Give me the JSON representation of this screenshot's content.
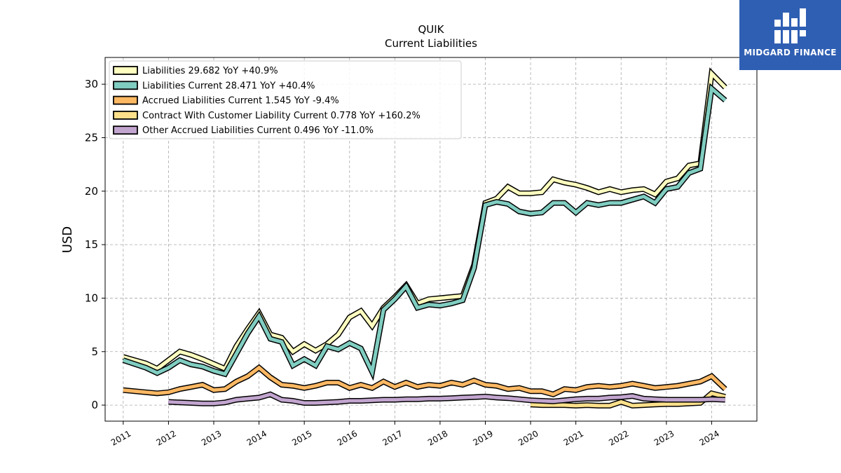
{
  "brand": {
    "name": "MIDGARD FINANCE",
    "color": "#2f5fb3"
  },
  "chart_data": {
    "type": "line",
    "title": "QUIK",
    "subtitle": "Current  Liabilities",
    "xlabel": "",
    "ylabel": "USD",
    "xlim": [
      2010.6,
      2025.0
    ],
    "ylim": [
      -1.5,
      32.5
    ],
    "yticks": [
      0,
      5,
      10,
      15,
      20,
      25,
      30
    ],
    "xticks": [
      "2011",
      "2012",
      "2013",
      "2014",
      "2015",
      "2016",
      "2017",
      "2018",
      "2019",
      "2020",
      "2021",
      "2022",
      "2023",
      "2024"
    ],
    "grid": true,
    "legend_position": "top-left",
    "series": [
      {
        "name": "Liabilities",
        "legend_label": "Liabilities  29.682 YoY +40.9%",
        "color": "#ffffbf",
        "points": [
          [
            2011.0,
            4.5
          ],
          [
            2011.5,
            3.9
          ],
          [
            2011.75,
            3.4
          ],
          [
            2012.25,
            5.0
          ],
          [
            2012.5,
            4.7
          ],
          [
            2012.75,
            4.3
          ],
          [
            2013.25,
            3.4
          ],
          [
            2013.5,
            5.5
          ],
          [
            2013.75,
            7.1
          ],
          [
            2014.0,
            8.6
          ],
          [
            2014.25,
            6.6
          ],
          [
            2014.5,
            6.3
          ],
          [
            2014.75,
            5.0
          ],
          [
            2015.0,
            5.7
          ],
          [
            2015.25,
            5.1
          ],
          [
            2015.5,
            5.7
          ],
          [
            2015.75,
            6.6
          ],
          [
            2016.0,
            8.2
          ],
          [
            2016.25,
            8.8
          ],
          [
            2016.5,
            7.4
          ],
          [
            2016.75,
            9.1
          ],
          [
            2017.0,
            10.1
          ],
          [
            2017.25,
            11.2
          ],
          [
            2017.5,
            9.5
          ],
          [
            2017.75,
            9.9
          ],
          [
            2018.0,
            10.0
          ],
          [
            2018.25,
            10.1
          ],
          [
            2018.5,
            10.2
          ],
          [
            2018.75,
            13.1
          ],
          [
            2019.0,
            18.9
          ],
          [
            2019.25,
            19.3
          ],
          [
            2019.5,
            20.4
          ],
          [
            2019.75,
            19.8
          ],
          [
            2020.0,
            19.8
          ],
          [
            2020.25,
            19.9
          ],
          [
            2020.5,
            21.1
          ],
          [
            2020.75,
            20.8
          ],
          [
            2021.0,
            20.6
          ],
          [
            2021.25,
            20.3
          ],
          [
            2021.5,
            19.9
          ],
          [
            2021.75,
            20.2
          ],
          [
            2022.0,
            19.9
          ],
          [
            2022.25,
            20.1
          ],
          [
            2022.5,
            20.2
          ],
          [
            2022.75,
            19.7
          ],
          [
            2023.0,
            20.9
          ],
          [
            2023.25,
            21.2
          ],
          [
            2023.5,
            22.4
          ],
          [
            2023.75,
            22.6
          ],
          [
            2024.0,
            31.0
          ],
          [
            2024.3,
            29.7
          ]
        ]
      },
      {
        "name": "Liabilities Current",
        "legend_label": "Liabilities Current  28.471 YoY +40.4%",
        "color": "#80cdc1",
        "points": [
          [
            2011.0,
            4.2
          ],
          [
            2011.5,
            3.5
          ],
          [
            2011.75,
            3.0
          ],
          [
            2012.0,
            3.5
          ],
          [
            2012.25,
            4.2
          ],
          [
            2012.5,
            3.8
          ],
          [
            2012.75,
            3.6
          ],
          [
            2013.0,
            3.2
          ],
          [
            2013.25,
            2.9
          ],
          [
            2013.5,
            4.8
          ],
          [
            2013.75,
            6.7
          ],
          [
            2014.0,
            8.3
          ],
          [
            2014.25,
            6.2
          ],
          [
            2014.5,
            5.9
          ],
          [
            2014.75,
            3.7
          ],
          [
            2015.0,
            4.3
          ],
          [
            2015.25,
            3.7
          ],
          [
            2015.5,
            5.5
          ],
          [
            2015.75,
            5.2
          ],
          [
            2016.0,
            5.8
          ],
          [
            2016.25,
            5.3
          ],
          [
            2016.5,
            3.1
          ],
          [
            2016.75,
            8.9
          ],
          [
            2017.0,
            9.9
          ],
          [
            2017.25,
            11.1
          ],
          [
            2017.5,
            9.1
          ],
          [
            2017.75,
            9.4
          ],
          [
            2018.0,
            9.3
          ],
          [
            2018.25,
            9.5
          ],
          [
            2018.5,
            9.8
          ],
          [
            2018.75,
            12.8
          ],
          [
            2019.0,
            18.7
          ],
          [
            2019.25,
            19.0
          ],
          [
            2019.5,
            18.8
          ],
          [
            2019.75,
            18.1
          ],
          [
            2020.0,
            17.9
          ],
          [
            2020.25,
            18.0
          ],
          [
            2020.5,
            18.9
          ],
          [
            2020.75,
            18.9
          ],
          [
            2021.0,
            18.0
          ],
          [
            2021.25,
            18.9
          ],
          [
            2021.5,
            18.7
          ],
          [
            2021.75,
            18.9
          ],
          [
            2022.0,
            18.9
          ],
          [
            2022.25,
            19.2
          ],
          [
            2022.5,
            19.5
          ],
          [
            2022.75,
            18.9
          ],
          [
            2023.0,
            20.2
          ],
          [
            2023.25,
            20.4
          ],
          [
            2023.5,
            21.7
          ],
          [
            2023.75,
            22.1
          ],
          [
            2024.0,
            29.6
          ],
          [
            2024.3,
            28.5
          ]
        ]
      },
      {
        "name": "Accrued Liabilities Current",
        "legend_label": "Accrued Liabilities Current  1.545 YoY -9.4%",
        "color": "#fdb863",
        "points": [
          [
            2011.0,
            1.4
          ],
          [
            2011.5,
            1.2
          ],
          [
            2011.75,
            1.1
          ],
          [
            2012.0,
            1.2
          ],
          [
            2012.25,
            1.5
          ],
          [
            2012.5,
            1.7
          ],
          [
            2012.75,
            1.9
          ],
          [
            2013.0,
            1.4
          ],
          [
            2013.25,
            1.5
          ],
          [
            2013.5,
            2.2
          ],
          [
            2013.75,
            2.7
          ],
          [
            2014.0,
            3.5
          ],
          [
            2014.25,
            2.6
          ],
          [
            2014.5,
            1.9
          ],
          [
            2014.75,
            1.8
          ],
          [
            2015.0,
            1.6
          ],
          [
            2015.25,
            1.8
          ],
          [
            2015.5,
            2.1
          ],
          [
            2015.75,
            2.1
          ],
          [
            2016.0,
            1.6
          ],
          [
            2016.25,
            1.9
          ],
          [
            2016.5,
            1.6
          ],
          [
            2016.75,
            2.2
          ],
          [
            2017.0,
            1.7
          ],
          [
            2017.25,
            2.1
          ],
          [
            2017.5,
            1.7
          ],
          [
            2017.75,
            1.9
          ],
          [
            2018.0,
            1.8
          ],
          [
            2018.25,
            2.1
          ],
          [
            2018.5,
            1.9
          ],
          [
            2018.75,
            2.3
          ],
          [
            2019.0,
            1.9
          ],
          [
            2019.25,
            1.8
          ],
          [
            2019.5,
            1.5
          ],
          [
            2019.75,
            1.6
          ],
          [
            2020.0,
            1.3
          ],
          [
            2020.25,
            1.3
          ],
          [
            2020.5,
            1.0
          ],
          [
            2020.75,
            1.5
          ],
          [
            2021.0,
            1.4
          ],
          [
            2021.25,
            1.7
          ],
          [
            2021.5,
            1.8
          ],
          [
            2021.75,
            1.7
          ],
          [
            2022.0,
            1.8
          ],
          [
            2022.25,
            2.0
          ],
          [
            2022.5,
            1.8
          ],
          [
            2022.75,
            1.6
          ],
          [
            2023.0,
            1.7
          ],
          [
            2023.25,
            1.8
          ],
          [
            2023.5,
            2.0
          ],
          [
            2023.75,
            2.2
          ],
          [
            2024.0,
            2.7
          ],
          [
            2024.3,
            1.5
          ]
        ]
      },
      {
        "name": "Contract With Customer Liability Current",
        "legend_label": "Contract With Customer Liability Current  0.778 YoY +160.2%",
        "color": "#fee08b",
        "points": [
          [
            2020.0,
            0.05
          ],
          [
            2020.25,
            0.0
          ],
          [
            2020.5,
            0.0
          ],
          [
            2020.75,
            0.0
          ],
          [
            2021.0,
            -0.05
          ],
          [
            2021.25,
            0.0
          ],
          [
            2021.5,
            -0.05
          ],
          [
            2021.75,
            -0.05
          ],
          [
            2022.0,
            0.3
          ],
          [
            2022.25,
            -0.05
          ],
          [
            2022.5,
            0.0
          ],
          [
            2022.75,
            0.05
          ],
          [
            2023.0,
            0.1
          ],
          [
            2023.25,
            0.1
          ],
          [
            2023.5,
            0.15
          ],
          [
            2023.75,
            0.2
          ],
          [
            2024.0,
            1.1
          ],
          [
            2024.3,
            0.78
          ]
        ]
      },
      {
        "name": "Other Accrued Liabilities Current",
        "legend_label": "Other Accrued Liabilities Current  0.496 YoY -11.0%",
        "color": "#c2a5cf",
        "points": [
          [
            2012.0,
            0.3
          ],
          [
            2012.25,
            0.25
          ],
          [
            2012.5,
            0.2
          ],
          [
            2012.75,
            0.15
          ],
          [
            2013.0,
            0.15
          ],
          [
            2013.25,
            0.25
          ],
          [
            2013.5,
            0.5
          ],
          [
            2013.75,
            0.6
          ],
          [
            2014.0,
            0.7
          ],
          [
            2014.25,
            1.0
          ],
          [
            2014.5,
            0.5
          ],
          [
            2014.75,
            0.4
          ],
          [
            2015.0,
            0.2
          ],
          [
            2015.25,
            0.2
          ],
          [
            2015.5,
            0.25
          ],
          [
            2015.75,
            0.3
          ],
          [
            2016.0,
            0.4
          ],
          [
            2016.25,
            0.4
          ],
          [
            2016.5,
            0.45
          ],
          [
            2016.75,
            0.5
          ],
          [
            2017.0,
            0.5
          ],
          [
            2017.25,
            0.55
          ],
          [
            2017.5,
            0.55
          ],
          [
            2017.75,
            0.6
          ],
          [
            2018.0,
            0.6
          ],
          [
            2018.25,
            0.65
          ],
          [
            2018.5,
            0.7
          ],
          [
            2018.75,
            0.75
          ],
          [
            2019.0,
            0.8
          ],
          [
            2019.25,
            0.7
          ],
          [
            2019.5,
            0.65
          ],
          [
            2019.75,
            0.55
          ],
          [
            2020.0,
            0.45
          ],
          [
            2020.25,
            0.4
          ],
          [
            2020.5,
            0.35
          ],
          [
            2020.75,
            0.45
          ],
          [
            2021.0,
            0.55
          ],
          [
            2021.25,
            0.6
          ],
          [
            2021.5,
            0.6
          ],
          [
            2021.75,
            0.7
          ],
          [
            2022.0,
            0.75
          ],
          [
            2022.25,
            0.85
          ],
          [
            2022.5,
            0.6
          ],
          [
            2022.75,
            0.55
          ],
          [
            2023.0,
            0.5
          ],
          [
            2023.25,
            0.5
          ],
          [
            2023.5,
            0.5
          ],
          [
            2023.75,
            0.5
          ],
          [
            2024.0,
            0.55
          ],
          [
            2024.3,
            0.5
          ]
        ]
      }
    ]
  }
}
